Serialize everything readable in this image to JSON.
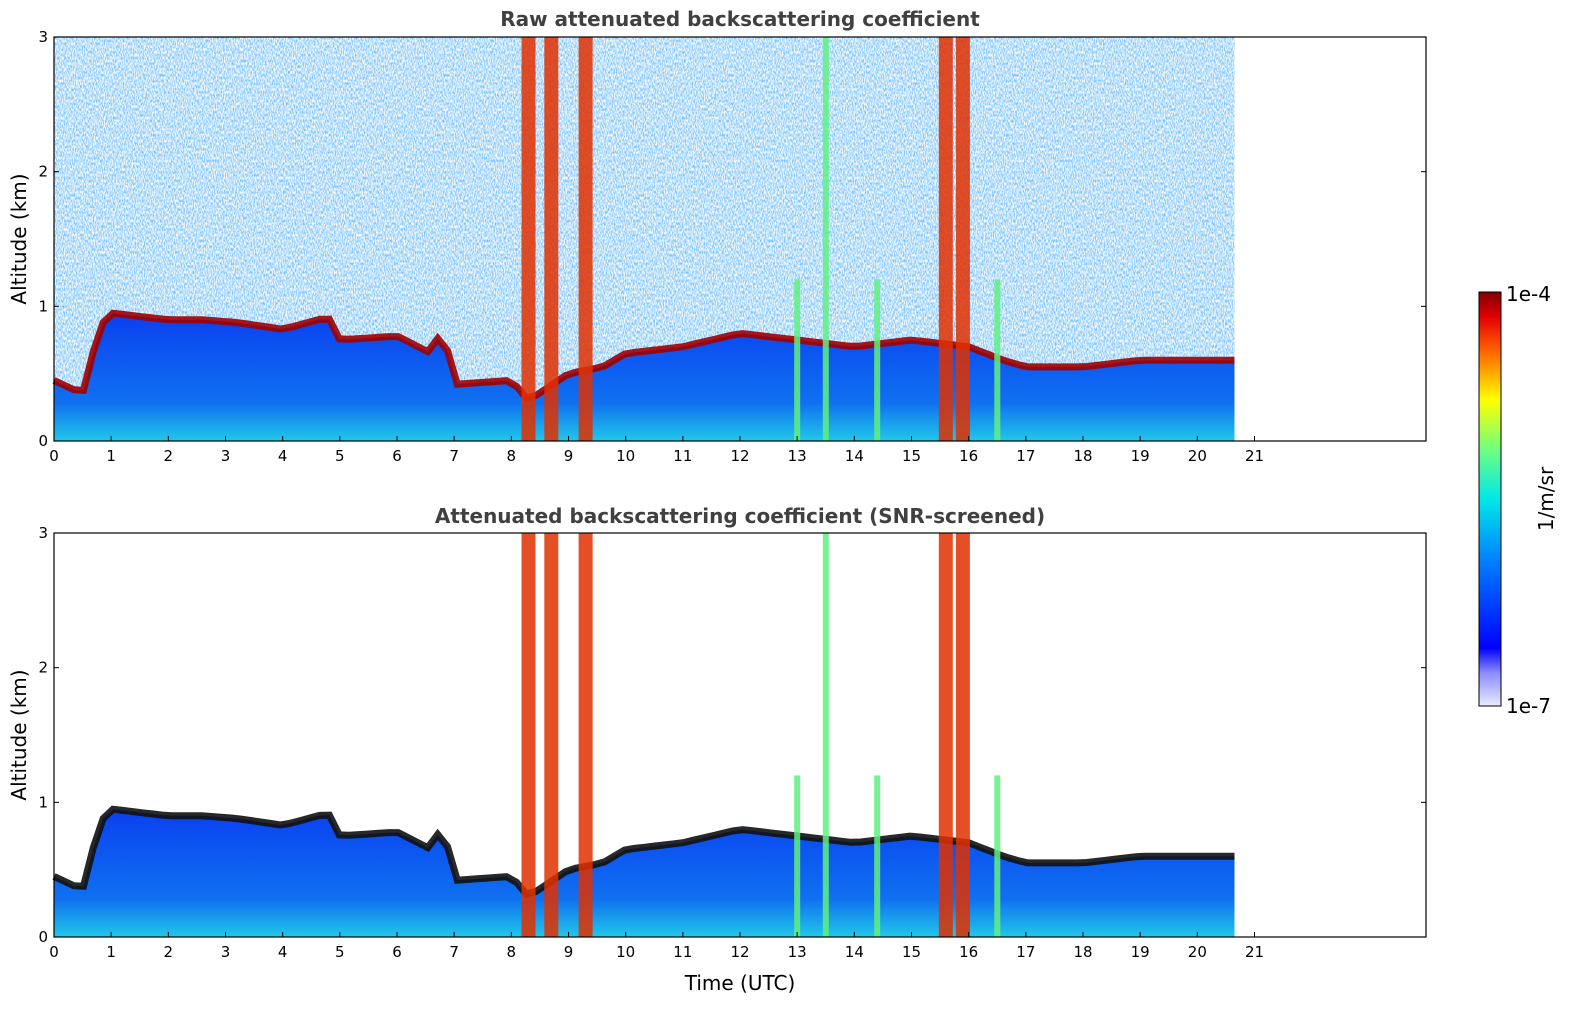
{
  "chart_data": [
    {
      "type": "heatmap",
      "title": "Raw attenuated backscattering coefficient",
      "xlabel": "",
      "ylabel": "Altitude (km)",
      "xlim": [
        0,
        24
      ],
      "ylim": [
        0,
        3
      ],
      "x_ticks": [
        "0",
        "1",
        "2",
        "3",
        "4",
        "5",
        "6",
        "7",
        "8",
        "9",
        "10",
        "11",
        "12",
        "13",
        "14",
        "15",
        "16",
        "17",
        "18",
        "19",
        "20",
        "21"
      ],
      "y_ticks": [
        "0",
        "1",
        "2",
        "3"
      ],
      "data_end_time": 20.65,
      "boundary_layer_top_km": [
        {
          "t": 0.0,
          "z": 0.45
        },
        {
          "t": 0.5,
          "z": 0.35
        },
        {
          "t": 0.8,
          "z": 0.85
        },
        {
          "t": 1.0,
          "z": 0.95
        },
        {
          "t": 2.0,
          "z": 0.9
        },
        {
          "t": 2.6,
          "z": 0.9
        },
        {
          "t": 3.2,
          "z": 0.88
        },
        {
          "t": 4.0,
          "z": 0.83
        },
        {
          "t": 4.8,
          "z": 0.92
        },
        {
          "t": 5.0,
          "z": 0.75
        },
        {
          "t": 6.0,
          "z": 0.78
        },
        {
          "t": 6.6,
          "z": 0.65
        },
        {
          "t": 6.8,
          "z": 0.85
        },
        {
          "t": 7.0,
          "z": 0.42
        },
        {
          "t": 8.0,
          "z": 0.45
        },
        {
          "t": 8.3,
          "z": 0.3
        },
        {
          "t": 9.0,
          "z": 0.5
        },
        {
          "t": 9.6,
          "z": 0.55
        },
        {
          "t": 10.0,
          "z": 0.65
        },
        {
          "t": 11.0,
          "z": 0.7
        },
        {
          "t": 12.0,
          "z": 0.8
        },
        {
          "t": 13.0,
          "z": 0.75
        },
        {
          "t": 14.0,
          "z": 0.7
        },
        {
          "t": 15.0,
          "z": 0.75
        },
        {
          "t": 16.0,
          "z": 0.7
        },
        {
          "t": 16.6,
          "z": 0.6
        },
        {
          "t": 17.0,
          "z": 0.55
        },
        {
          "t": 18.0,
          "z": 0.55
        },
        {
          "t": 19.0,
          "z": 0.6
        },
        {
          "t": 20.0,
          "z": 0.6
        },
        {
          "t": 20.65,
          "z": 0.6
        }
      ],
      "precipitation_columns_utc": [
        8.3,
        8.7,
        9.3,
        13.0,
        13.5,
        14.4,
        15.6,
        15.9,
        16.5
      ]
    },
    {
      "type": "heatmap",
      "title": "Attenuated backscattering coefficient (SNR-screened)",
      "xlabel": "Time (UTC)",
      "ylabel": "Altitude (km)",
      "xlim": [
        0,
        24
      ],
      "ylim": [
        0,
        3
      ],
      "x_ticks": [
        "0",
        "1",
        "2",
        "3",
        "4",
        "5",
        "6",
        "7",
        "8",
        "9",
        "10",
        "11",
        "12",
        "13",
        "14",
        "15",
        "16",
        "17",
        "18",
        "19",
        "20",
        "21"
      ],
      "y_ticks": [
        "0",
        "1",
        "2",
        "3"
      ],
      "data_end_time": 20.65
    }
  ],
  "colorbar": {
    "label": "1/m/sr",
    "max_label": "1e-4",
    "min_label": "1e-7",
    "scale": "log",
    "range": [
      1e-07,
      0.0001
    ],
    "colormap": "jet"
  }
}
